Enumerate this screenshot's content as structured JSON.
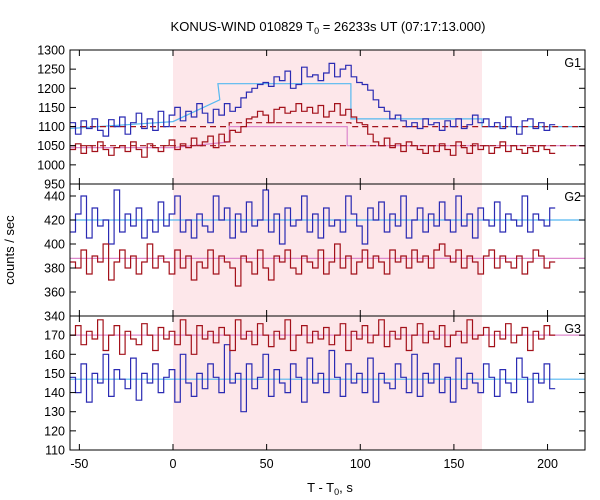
{
  "chart_data": {
    "type": "line",
    "title_main": "KONUS-WIND 010829 T",
    "title_sub": "0",
    "title_rest": " = 26233s UT (07:17:13.000)",
    "xlabel_main": "T - T",
    "xlabel_sub": "0",
    "xlabel_rest": ", s",
    "ylabel": "counts / sec",
    "xlim": [
      -55,
      220
    ],
    "xticks": [
      -50,
      0,
      50,
      100,
      150,
      200
    ],
    "shaded_interval": [
      0,
      165
    ],
    "bin_width": 2.944,
    "colors": {
      "blue": "#2b2bb3",
      "red": "#a3111a",
      "fit_blue": "#55b8f0",
      "fit_red": "#dd88cc",
      "shade": "#fde7ea"
    },
    "panels": [
      {
        "name": "G1",
        "ylim": [
          950,
          1300
        ],
        "yticks": [
          950,
          1000,
          1050,
          1100,
          1150,
          1200,
          1250,
          1300
        ],
        "series": [
          {
            "color": "blue",
            "x_start": -55,
            "values": [
              1110,
              1080,
              1115,
              1095,
              1120,
              1090,
              1075,
              1118,
              1100,
              1125,
              1080,
              1110,
              1135,
              1095,
              1120,
              1090,
              1140,
              1100,
              1130,
              1150,
              1115,
              1140,
              1125,
              1160,
              1135,
              1110,
              1145,
              1130,
              1160,
              1140,
              1150,
              1175,
              1190,
              1200,
              1210,
              1215,
              1205,
              1230,
              1220,
              1245,
              1200,
              1210,
              1255,
              1230,
              1235,
              1220,
              1240,
              1265,
              1230,
              1250,
              1260,
              1230,
              1215,
              1210,
              1195,
              1170,
              1150,
              1140,
              1120,
              1130,
              1115,
              1100,
              1110,
              1095,
              1120,
              1105,
              1110,
              1090,
              1115,
              1100,
              1120,
              1095,
              1105,
              1130,
              1110,
              1120,
              1100,
              1110,
              1095,
              1125,
              1100,
              1080,
              1115,
              1120,
              1095,
              1110,
              1090,
              1105
            ]
          },
          {
            "color": "red",
            "x_start": -55,
            "values": [
              1040,
              1055,
              1030,
              1050,
              1035,
              1060,
              1040,
              1025,
              1045,
              1050,
              1035,
              1060,
              1040,
              1020,
              1055,
              1045,
              1035,
              1050,
              1065,
              1040,
              1055,
              1045,
              1070,
              1050,
              1060,
              1075,
              1045,
              1080,
              1060,
              1090,
              1085,
              1100,
              1120,
              1125,
              1140,
              1130,
              1110,
              1145,
              1150,
              1135,
              1140,
              1160,
              1140,
              1150,
              1135,
              1155,
              1125,
              1140,
              1160,
              1130,
              1145,
              1125,
              1110,
              1105,
              1080,
              1060,
              1050,
              1070,
              1045,
              1055,
              1035,
              1060,
              1050,
              1040,
              1030,
              1050,
              1035,
              1055,
              1040,
              1025,
              1060,
              1045,
              1030,
              1055,
              1040,
              1050,
              1030,
              1045,
              1060,
              1035,
              1050,
              1040,
              1030,
              1045,
              1035,
              1050,
              1040,
              1030
            ]
          }
        ],
        "fits": [
          {
            "color": "fit_blue",
            "style": "solid",
            "steps": [
              [
                -55,
                1095
              ],
              [
                0,
                1113
              ],
              [
                25,
                1170
              ],
              [
                24,
                1212
              ],
              [
                95,
                1212
              ],
              [
                95,
                1120
              ],
              [
                165,
                1120
              ],
              [
                165,
                1100
              ],
              [
                220,
                1100
              ]
            ]
          },
          {
            "color": "red",
            "style": "dashed",
            "steps": [
              [
                -55,
                1100
              ],
              [
                30,
                1100
              ],
              [
                30,
                1110
              ],
              [
                95,
                1110
              ],
              [
                95,
                1100
              ],
              [
                220,
                1100
              ]
            ]
          },
          {
            "color": "fit_red",
            "style": "solid",
            "steps": [
              [
                -55,
                1045
              ],
              [
                0,
                1045
              ],
              [
                30,
                1060
              ],
              [
                30,
                1100
              ],
              [
                93,
                1100
              ],
              [
                93,
                1050
              ],
              [
                220,
                1050
              ]
            ]
          },
          {
            "color": "red",
            "style": "dashed",
            "steps": [
              [
                -55,
                1050
              ],
              [
                220,
                1050
              ]
            ]
          }
        ]
      },
      {
        "name": "G2",
        "ylim": [
          340,
          450
        ],
        "yticks": [
          340,
          360,
          380,
          400,
          420,
          440
        ],
        "series": [
          {
            "color": "blue",
            "x_start": -55,
            "values": [
              410,
              425,
              440,
              405,
              430,
              415,
              420,
              400,
              445,
              410,
              425,
              415,
              430,
              405,
              420,
              410,
              435,
              415,
              425,
              440,
              410,
              420,
              405,
              425,
              415,
              410,
              440,
              420,
              430,
              405,
              425,
              410,
              435,
              415,
              420,
              445,
              410,
              425,
              400,
              430,
              415,
              420,
              440,
              410,
              425,
              405,
              430,
              415,
              420,
              410,
              440,
              425,
              415,
              400,
              430,
              420,
              435,
              410,
              425,
              415,
              440,
              405,
              420,
              430,
              410,
              425,
              415,
              435,
              420,
              410,
              440,
              415,
              425,
              405,
              430,
              420,
              415,
              435,
              410,
              425,
              420,
              415,
              440,
              410,
              425,
              420,
              415,
              430
            ]
          },
          {
            "color": "red",
            "x_start": -55,
            "values": [
              385,
              380,
              395,
              375,
              390,
              385,
              400,
              370,
              385,
              395,
              380,
              390,
              375,
              385,
              400,
              380,
              390,
              385,
              375,
              395,
              380,
              390,
              370,
              385,
              380,
              395,
              375,
              390,
              385,
              380,
              365,
              390,
              385,
              375,
              395,
              380,
              370,
              390,
              385,
              395,
              380,
              375,
              390,
              385,
              380,
              395,
              375,
              385,
              400,
              380,
              390,
              375,
              385,
              395,
              380,
              390,
              385,
              375,
              395,
              385,
              390,
              380,
              395,
              385,
              390,
              380,
              395,
              400,
              390,
              385,
              395,
              380,
              390,
              385,
              375,
              390,
              395,
              380,
              390,
              385,
              380,
              390,
              375,
              385,
              395,
              390,
              380,
              385
            ]
          }
        ],
        "fits": [
          {
            "color": "fit_blue",
            "style": "solid",
            "steps": [
              [
                -55,
                420
              ],
              [
                220,
                420
              ]
            ]
          },
          {
            "color": "fit_red",
            "style": "solid",
            "steps": [
              [
                -55,
                388
              ],
              [
                220,
                388
              ]
            ]
          }
        ]
      },
      {
        "name": "G3",
        "ylim": [
          110,
          180
        ],
        "yticks": [
          110,
          120,
          130,
          140,
          150,
          160,
          170
        ],
        "series": [
          {
            "color": "blue",
            "x_start": -55,
            "values": [
              148,
              140,
              155,
              135,
              150,
              145,
              160,
              138,
              152,
              147,
              142,
              158,
              136,
              150,
              145,
              155,
              140,
              148,
              152,
              135,
              160,
              145,
              138,
              150,
              142,
              155,
              148,
              140,
              165,
              145,
              150,
              130,
              155,
              142,
              148,
              160,
              138,
              152,
              145,
              140,
              155,
              148,
              135,
              158,
              145,
              150,
              140,
              162,
              148,
              138,
              155,
              145,
              150,
              140,
              158,
              135,
              150,
              145,
              142,
              155,
              148,
              140,
              160,
              138,
              150,
              145,
              155,
              140,
              148,
              135,
              158,
              142,
              150,
              145,
              140,
              155,
              148,
              138,
              152,
              145,
              140,
              158,
              148,
              135,
              150,
              145,
              155,
              142
            ]
          },
          {
            "color": "red",
            "x_start": -55,
            "values": [
              170,
              175,
              165,
              172,
              168,
              178,
              162,
              170,
              175,
              160,
              172,
              168,
              165,
              176,
              170,
              162,
              174,
              168,
              172,
              165,
              178,
              170,
              160,
              175,
              168,
              172,
              166,
              174,
              170,
              162,
              178,
              168,
              172,
              165,
              176,
              170,
              164,
              172,
              168,
              178,
              162,
              170,
              175,
              166,
              172,
              168,
              174,
              165,
              170,
              176,
              162,
              172,
              168,
              175,
              166,
              170,
              178,
              164,
              172,
              168,
              174,
              162,
              170,
              176,
              166,
              172,
              168,
              175,
              164,
              170,
              172,
              166,
              178,
              168,
              170,
              174,
              164,
              172,
              168,
              176,
              166,
              170,
              174,
              162,
              172,
              168,
              175,
              170
            ]
          }
        ],
        "fits": [
          {
            "color": "fit_blue",
            "style": "solid",
            "steps": [
              [
                -55,
                147
              ],
              [
                220,
                147
              ]
            ]
          },
          {
            "color": "fit_red",
            "style": "solid",
            "steps": [
              [
                -55,
                170
              ],
              [
                220,
                170
              ]
            ]
          }
        ]
      }
    ]
  }
}
